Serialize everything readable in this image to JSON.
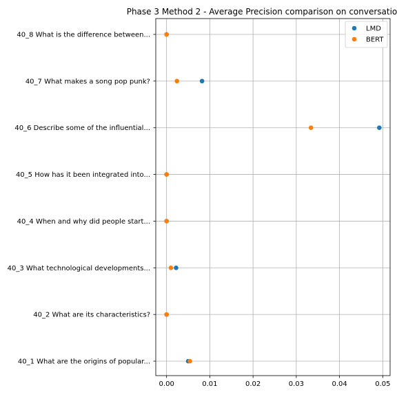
{
  "chart_data": {
    "type": "scatter",
    "title": "Phase 3 Method 2 - Average Precision comparison on conversatio",
    "xlabel": "",
    "ylabel": "",
    "xlim": [
      -0.0025,
      0.0517
    ],
    "xticks": [
      0.0,
      0.01,
      0.02,
      0.03,
      0.04,
      0.05
    ],
    "xtick_labels": [
      "0.00",
      "0.01",
      "0.02",
      "0.03",
      "0.04",
      "0.05"
    ],
    "grid": true,
    "legend_position": "top-right",
    "categories": [
      "40_1 What are the origins of popular...",
      "40_2 What are its characteristics?",
      "40_3 What technological developments...",
      "40_4 When and why did people start...",
      "40_5 How has it been integrated into...",
      "40_6 Describe some of the influential...",
      "40_7 What makes a song pop punk?",
      "40_8 What is the difference between..."
    ],
    "series": [
      {
        "name": "LMD",
        "color": "#1f77b4",
        "values": [
          0.005,
          0.0,
          0.0022,
          0.0,
          0.0,
          0.0492,
          0.0082,
          0.0
        ]
      },
      {
        "name": "BERT",
        "color": "#ff7f0e",
        "values": [
          0.0054,
          0.0,
          0.001,
          0.0,
          0.0,
          0.0334,
          0.0024,
          0.0
        ]
      }
    ]
  }
}
